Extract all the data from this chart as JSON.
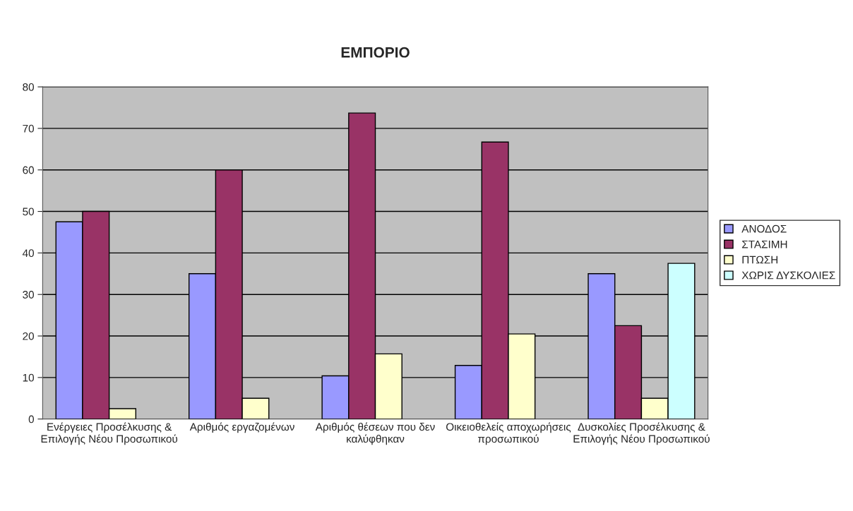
{
  "chart_data": {
    "type": "bar",
    "title": "ΕΜΠΟΡΙΟ",
    "categories": [
      "Ενέργειες Προσέλκυσης & Επιλογής Νέου Προσωπικού",
      "Αριθμός εργαζομένων",
      "Αριθμός θέσεων που δεν καλύφθηκαν",
      "Οικειοθελείς αποχωρήσεις προσωπικού",
      "Δυσκολίες Προσέλκυσης & Επιλογής Νέου Προσωπικού"
    ],
    "series": [
      {
        "name": "ΑΝΟΔΟΣ",
        "color": "#9999ff",
        "values": [
          47.5,
          35,
          10.4,
          12.9,
          35
        ]
      },
      {
        "name": "ΣΤΑΣΙΜΗ",
        "color": "#993366",
        "values": [
          50,
          60,
          73.7,
          66.7,
          22.5
        ]
      },
      {
        "name": "ΠΤΩΣΗ",
        "color": "#ffffcc",
        "values": [
          2.5,
          5,
          15.7,
          20.5,
          5
        ]
      },
      {
        "name": "ΧΩΡΙΣ ΔΥΣΚΟΛΙΕΣ",
        "color": "#ccffff",
        "values": [
          null,
          null,
          null,
          null,
          37.5
        ]
      }
    ],
    "ylim": [
      0,
      80
    ],
    "yticks": [
      0,
      10,
      20,
      30,
      40,
      50,
      60,
      70,
      80
    ],
    "grid": "y",
    "legend": "right"
  }
}
